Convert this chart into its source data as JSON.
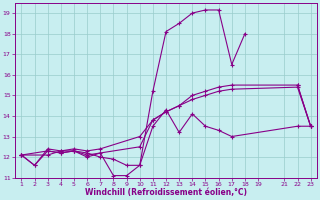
{
  "xlabel": "Windchill (Refroidissement éolien,°C)",
  "xlim": [
    0.5,
    23.5
  ],
  "ylim": [
    11,
    19.5
  ],
  "xticks": [
    1,
    2,
    3,
    4,
    5,
    6,
    7,
    8,
    9,
    10,
    11,
    12,
    13,
    14,
    15,
    16,
    17,
    18,
    19,
    21,
    22,
    23
  ],
  "yticks": [
    11,
    12,
    13,
    14,
    15,
    16,
    17,
    18,
    19
  ],
  "background_color": "#c8eef0",
  "line_color": "#880088",
  "grid_color": "#99cccc",
  "lines": [
    {
      "x": [
        1,
        2,
        3,
        4,
        5,
        6,
        7,
        8,
        9,
        10,
        11,
        12,
        13,
        14,
        15,
        16,
        17,
        18
      ],
      "y": [
        12.1,
        11.6,
        12.3,
        12.2,
        12.3,
        12.0,
        12.2,
        11.1,
        11.1,
        11.6,
        15.2,
        18.1,
        18.5,
        19.0,
        19.15,
        19.15,
        16.5,
        18.0
      ]
    },
    {
      "x": [
        22,
        23
      ],
      "y": [
        15.5,
        13.5
      ]
    },
    {
      "x": [
        1,
        2,
        3,
        4,
        5,
        6,
        7,
        8,
        9,
        10,
        11,
        12,
        13,
        14,
        15,
        16,
        17,
        22,
        23
      ],
      "y": [
        12.1,
        11.6,
        12.4,
        12.3,
        12.3,
        12.2,
        12.0,
        11.9,
        11.6,
        11.6,
        13.5,
        14.3,
        13.2,
        14.1,
        13.5,
        13.3,
        13.0,
        13.5,
        13.5
      ]
    },
    {
      "x": [
        1,
        3,
        4,
        5,
        6,
        10,
        11,
        12,
        13,
        14,
        15,
        16,
        17,
        22,
        23
      ],
      "y": [
        12.1,
        12.3,
        12.2,
        12.3,
        12.1,
        12.5,
        13.8,
        14.2,
        14.5,
        15.0,
        15.2,
        15.4,
        15.5,
        15.5,
        13.5
      ]
    },
    {
      "x": [
        1,
        3,
        4,
        5,
        6,
        7,
        10,
        11,
        12,
        13,
        14,
        15,
        16,
        17,
        22,
        23
      ],
      "y": [
        12.1,
        12.1,
        12.3,
        12.4,
        12.3,
        12.4,
        13.0,
        13.8,
        14.2,
        14.5,
        14.8,
        15.0,
        15.2,
        15.3,
        15.4,
        13.5
      ]
    }
  ]
}
